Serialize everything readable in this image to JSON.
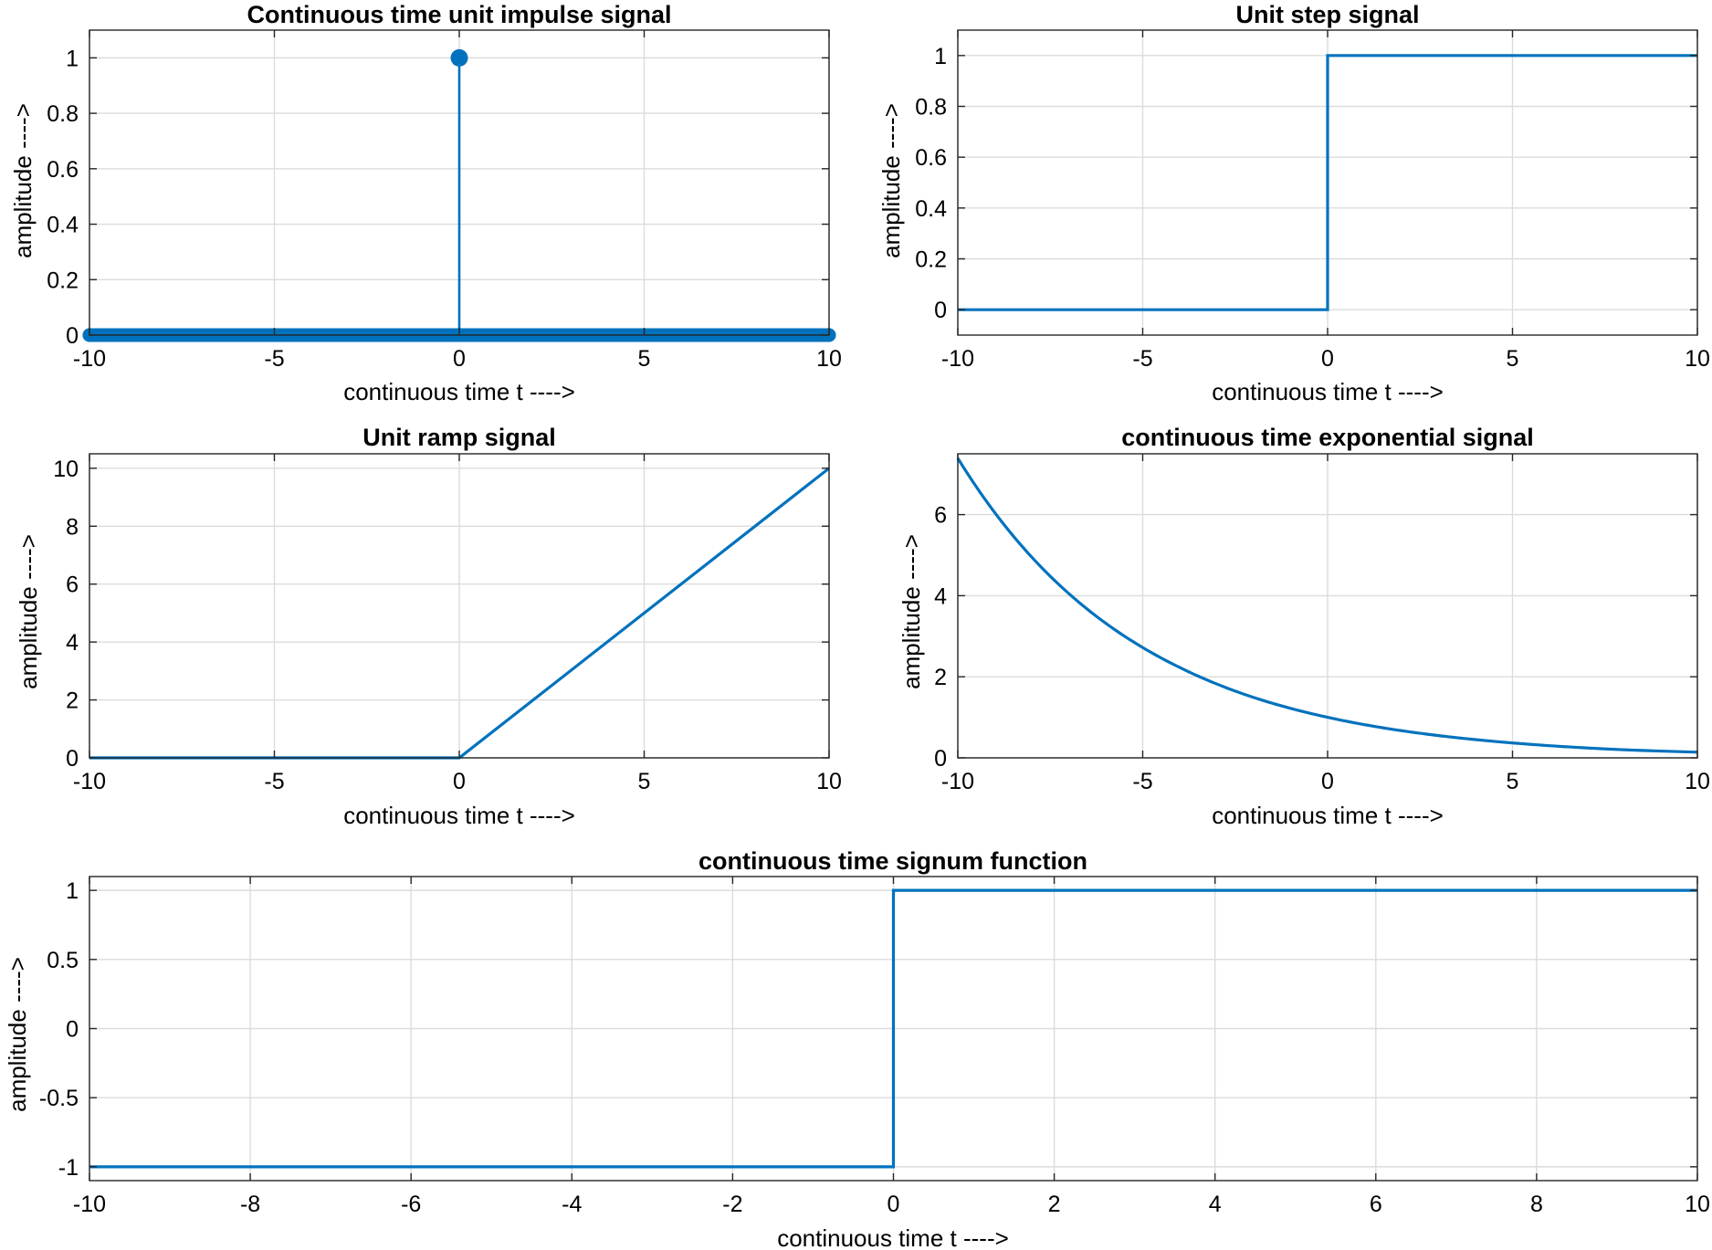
{
  "chart_data": [
    {
      "type": "line",
      "style": "stem",
      "title": "Continuous time unit impulse signal",
      "xlabel": "continuous time t ---->",
      "ylabel": "amplitude ---->",
      "xlim": [
        -10,
        10
      ],
      "ylim": [
        0,
        1.1
      ],
      "grid": true,
      "xticks": [
        -10,
        -5,
        0,
        5,
        10
      ],
      "yticks": [
        0,
        0.2,
        0.4,
        0.6,
        0.8,
        1
      ],
      "x_start": -10,
      "x_end": 10,
      "x_step": 0.01,
      "impulse": {
        "x": 0,
        "y": 1
      },
      "baseline_value": 0,
      "color": "#0072BD"
    },
    {
      "type": "line",
      "title": "Unit step signal",
      "xlabel": "continuous time t ---->",
      "ylabel": "amplitude ---->",
      "xlim": [
        -10,
        10
      ],
      "ylim": [
        -0.1,
        1.1
      ],
      "grid": true,
      "xticks": [
        -10,
        -5,
        0,
        5,
        10
      ],
      "yticks": [
        0,
        0.2,
        0.4,
        0.6,
        0.8,
        1
      ],
      "series": [
        {
          "x": [
            -10,
            0,
            0,
            10
          ],
          "y": [
            0,
            0,
            1,
            1
          ]
        }
      ],
      "color": "#0072BD"
    },
    {
      "type": "line",
      "title": "Unit ramp signal",
      "xlabel": "continuous time t ---->",
      "ylabel": "amplitude ---->",
      "xlim": [
        -10,
        10
      ],
      "ylim": [
        0,
        10.5
      ],
      "grid": true,
      "xticks": [
        -10,
        -5,
        0,
        5,
        10
      ],
      "yticks": [
        0,
        2,
        4,
        6,
        8,
        10
      ],
      "series": [
        {
          "x": [
            -10,
            0,
            10
          ],
          "y": [
            0,
            0,
            10
          ]
        }
      ],
      "color": "#0072BD"
    },
    {
      "type": "line",
      "title": "continuous time exponential signal",
      "xlabel": "continuous time t ---->",
      "ylabel": "amplitude ---->",
      "xlim": [
        -10,
        10
      ],
      "ylim": [
        0,
        7.5
      ],
      "grid": true,
      "xticks": [
        -10,
        -5,
        0,
        5,
        10
      ],
      "yticks": [
        0,
        2,
        4,
        6
      ],
      "series": [
        {
          "x": [
            -10,
            -8,
            -6,
            -4,
            -2,
            0,
            2,
            4,
            6,
            8,
            10
          ],
          "y": [
            7.39,
            4.95,
            3.32,
            2.23,
            1.49,
            1.0,
            0.67,
            0.45,
            0.3,
            0.2,
            0.14
          ]
        }
      ],
      "color": "#0072BD"
    },
    {
      "type": "line",
      "title": "continuous time signum function",
      "xlabel": "continuous time t ---->",
      "ylabel": "amplitude ---->",
      "xlim": [
        -10,
        10
      ],
      "ylim": [
        -1.1,
        1.1
      ],
      "grid": true,
      "xticks": [
        -10,
        -8,
        -6,
        -4,
        -2,
        0,
        2,
        4,
        6,
        8,
        10
      ],
      "yticks": [
        -1,
        -0.5,
        0,
        0.5,
        1
      ],
      "series": [
        {
          "x": [
            -10,
            0,
            0,
            10
          ],
          "y": [
            -1,
            -1,
            1,
            1
          ]
        }
      ],
      "color": "#0072BD"
    }
  ]
}
